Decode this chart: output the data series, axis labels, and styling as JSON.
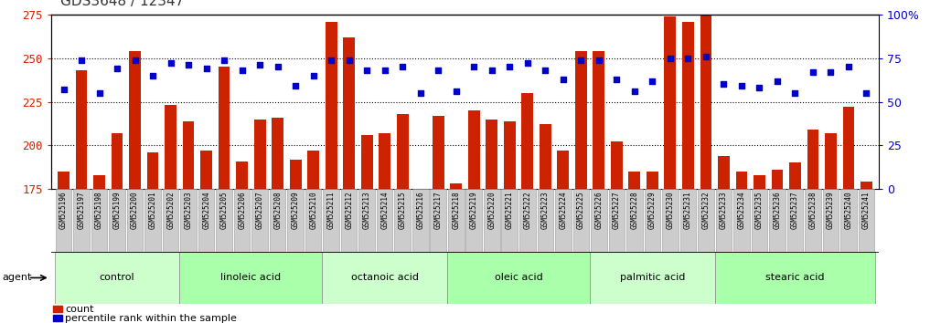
{
  "title": "GDS3648 / 12347",
  "samples": [
    "GSM525196",
    "GSM525197",
    "GSM525198",
    "GSM525199",
    "GSM525200",
    "GSM525201",
    "GSM525202",
    "GSM525203",
    "GSM525204",
    "GSM525205",
    "GSM525206",
    "GSM525207",
    "GSM525208",
    "GSM525209",
    "GSM525210",
    "GSM525211",
    "GSM525212",
    "GSM525213",
    "GSM525214",
    "GSM525215",
    "GSM525216",
    "GSM525217",
    "GSM525218",
    "GSM525219",
    "GSM525220",
    "GSM525221",
    "GSM525222",
    "GSM525223",
    "GSM525224",
    "GSM525225",
    "GSM525226",
    "GSM525227",
    "GSM525228",
    "GSM525229",
    "GSM525230",
    "GSM525231",
    "GSM525232",
    "GSM525233",
    "GSM525234",
    "GSM525235",
    "GSM525236",
    "GSM525237",
    "GSM525238",
    "GSM525239",
    "GSM525240",
    "GSM525241"
  ],
  "counts": [
    185,
    243,
    183,
    207,
    254,
    196,
    223,
    214,
    197,
    245,
    191,
    215,
    216,
    192,
    197,
    271,
    262,
    206,
    207,
    218,
    170,
    217,
    178,
    220,
    215,
    214,
    230,
    212,
    197,
    254,
    254,
    202,
    185,
    185,
    274,
    271,
    283,
    194,
    185,
    183,
    186,
    190,
    209,
    207,
    222,
    179
  ],
  "percentile": [
    57,
    74,
    55,
    69,
    74,
    65,
    72,
    71,
    69,
    74,
    68,
    71,
    70,
    59,
    65,
    74,
    74,
    68,
    68,
    70,
    55,
    68,
    56,
    70,
    68,
    70,
    72,
    68,
    63,
    74,
    74,
    63,
    56,
    62,
    75,
    75,
    76,
    60,
    59,
    58,
    62,
    55,
    67,
    67,
    70,
    55
  ],
  "groups": [
    {
      "label": "control",
      "start": 0,
      "end": 7,
      "color": "#ccffcc"
    },
    {
      "label": "linoleic acid",
      "start": 7,
      "end": 15,
      "color": "#aaffaa"
    },
    {
      "label": "octanoic acid",
      "start": 15,
      "end": 22,
      "color": "#ccffcc"
    },
    {
      "label": "oleic acid",
      "start": 22,
      "end": 30,
      "color": "#aaffaa"
    },
    {
      "label": "palmitic acid",
      "start": 30,
      "end": 37,
      "color": "#ccffcc"
    },
    {
      "label": "stearic acid",
      "start": 37,
      "end": 46,
      "color": "#aaffaa"
    }
  ],
  "ylim_left": [
    175,
    275
  ],
  "ylim_right": [
    0,
    100
  ],
  "yticks_left": [
    175,
    200,
    225,
    250,
    275
  ],
  "yticks_right": [
    0,
    25,
    50,
    75,
    100
  ],
  "bar_color": "#cc2200",
  "dot_color": "#0000cc",
  "bar_width": 0.65,
  "tick_label_bg": "#cccccc",
  "title_color": "#333333",
  "left_axis_color": "#cc2200",
  "right_axis_color": "#0000cc",
  "grid_color": "#000000",
  "agent_label": "agent"
}
